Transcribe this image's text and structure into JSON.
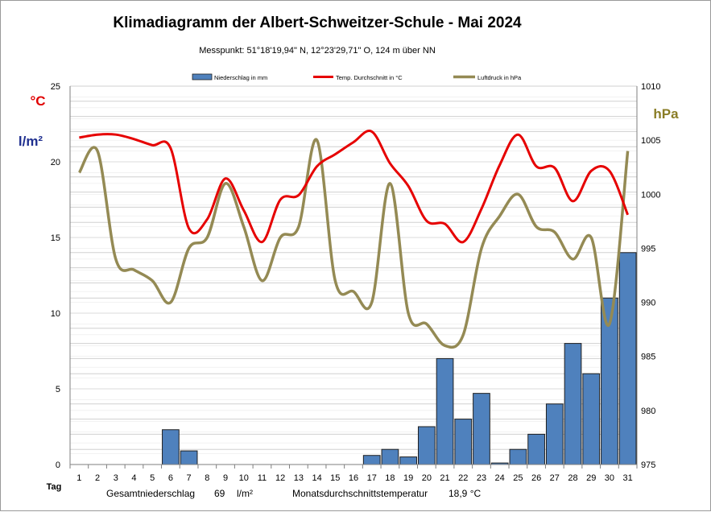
{
  "chart_data": {
    "type": "bar",
    "title": "Klimadiagramm der Albert-Schweitzer-Schule   -   Mai 2024",
    "subtitle": "Messpunkt:  51°18'19,94\" N,  12°23'29,71\" O,  124 m über NN",
    "x_label": "Tag",
    "y_left_units": [
      "°C",
      "l/m²"
    ],
    "y_right_unit": "hPa",
    "y_left_range": [
      0,
      25
    ],
    "y_left_ticks": [
      "0",
      "5",
      "10",
      "15",
      "20",
      "25"
    ],
    "y_right_range": [
      975,
      1010
    ],
    "y_right_ticks": [
      "975",
      "980",
      "985",
      "990",
      "995",
      "1000",
      "1005",
      "1010"
    ],
    "categories": [
      "1",
      "2",
      "3",
      "4",
      "5",
      "6",
      "7",
      "8",
      "9",
      "10",
      "11",
      "12",
      "13",
      "14",
      "15",
      "16",
      "17",
      "18",
      "19",
      "20",
      "21",
      "22",
      "23",
      "24",
      "25",
      "26",
      "27",
      "28",
      "29",
      "30",
      "31"
    ],
    "grid": true,
    "legend_position": "top",
    "series": [
      {
        "name": "Niederschlag in mm",
        "type": "bar",
        "axis": "left",
        "color": "#4f81bd",
        "values": [
          0,
          0,
          0,
          0,
          0,
          2.3,
          0.9,
          0,
          0,
          0,
          0,
          0,
          0,
          0,
          0,
          0,
          0.6,
          1.0,
          0.5,
          2.5,
          7.0,
          3.0,
          4.7,
          0.1,
          1.0,
          2.0,
          4.0,
          8.0,
          6.0,
          11.0,
          14.0
        ]
      },
      {
        "name": "Temp. Durchschnitt in °C",
        "type": "line",
        "axis": "left",
        "color": "#e60000",
        "values": [
          21.6,
          21.8,
          21.8,
          21.5,
          21.1,
          20.9,
          15.6,
          16.2,
          18.9,
          16.8,
          14.7,
          17.5,
          17.8,
          19.7,
          20.5,
          21.3,
          22.0,
          19.9,
          18.4,
          16.1,
          15.9,
          14.7,
          16.9,
          19.8,
          21.8,
          19.7,
          19.6,
          17.4,
          19.4,
          19.4,
          16.5
        ]
      },
      {
        "name": "Luftdruck in hPa",
        "type": "line",
        "axis": "right",
        "color": "#948a54",
        "values": [
          1002,
          1004,
          994,
          993,
          992,
          990,
          995,
          996,
          1001,
          997,
          992,
          996,
          997,
          1005,
          992,
          991,
          990,
          1001,
          989,
          988,
          986,
          987,
          995,
          998,
          1000,
          997,
          996.5,
          994,
          996,
          988,
          1004
        ]
      }
    ],
    "footer": {
      "total_label": "Gesamtniederschlag",
      "total_value": "69",
      "total_unit": "l/m²",
      "avg_label": "Monatsdurchschnittstemperatur",
      "avg_value": "18,9 °C"
    }
  }
}
